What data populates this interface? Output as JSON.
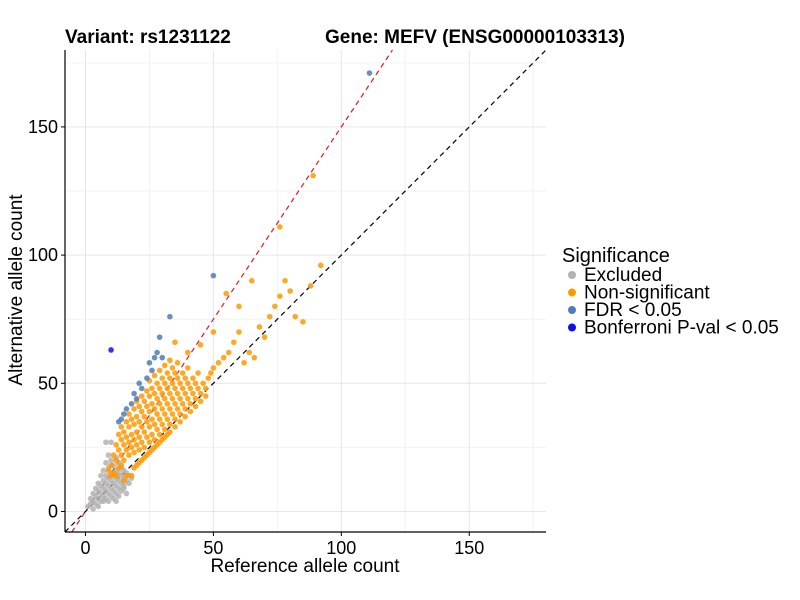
{
  "chart_data": {
    "type": "scatter",
    "title_left": "Variant: rs1231122",
    "title_right": "Gene: MEFV (ENSG00000103313)",
    "xlabel": "Reference allele count",
    "ylabel": "Alternative allele count",
    "xlim": [
      -8,
      180
    ],
    "ylim": [
      -8,
      180
    ],
    "xticks": [
      0,
      50,
      100,
      150
    ],
    "yticks": [
      0,
      50,
      100,
      150
    ],
    "grid": true,
    "reference_lines": [
      {
        "name": "identity",
        "slope": 1,
        "intercept": 0,
        "color": "#000000",
        "style": "dashed"
      },
      {
        "name": "fitted",
        "slope": 1.5,
        "intercept": 0,
        "color": "#e8141b",
        "style": "dashed"
      }
    ],
    "legend": {
      "title": "Significance",
      "position": "right",
      "entries": [
        {
          "label": "Excluded",
          "color": "#b3b3b3"
        },
        {
          "label": "Non-significant",
          "color": "#ff9900"
        },
        {
          "label": "FDR < 0.05",
          "color": "#4f7db5"
        },
        {
          "label": "Bonferroni P-val < 0.05",
          "color": "#1010ee"
        }
      ]
    },
    "series": [
      {
        "name": "Excluded",
        "color": "#b3b3b3",
        "points": [
          [
            1,
            2
          ],
          [
            2,
            3
          ],
          [
            2,
            5
          ],
          [
            3,
            4
          ],
          [
            3,
            7
          ],
          [
            4,
            3
          ],
          [
            4,
            6
          ],
          [
            4,
            9
          ],
          [
            5,
            5
          ],
          [
            5,
            8
          ],
          [
            5,
            11
          ],
          [
            6,
            4
          ],
          [
            6,
            7
          ],
          [
            6,
            10
          ],
          [
            6,
            14
          ],
          [
            7,
            6
          ],
          [
            7,
            9
          ],
          [
            7,
            12
          ],
          [
            7,
            16
          ],
          [
            8,
            5
          ],
          [
            8,
            8
          ],
          [
            8,
            11
          ],
          [
            8,
            14
          ],
          [
            8,
            19
          ],
          [
            9,
            7
          ],
          [
            9,
            10
          ],
          [
            9,
            13
          ],
          [
            9,
            17
          ],
          [
            9,
            22
          ],
          [
            10,
            6
          ],
          [
            10,
            9
          ],
          [
            10,
            12
          ],
          [
            10,
            15
          ],
          [
            10,
            20
          ],
          [
            10,
            27
          ],
          [
            11,
            8
          ],
          [
            11,
            11
          ],
          [
            11,
            14
          ],
          [
            11,
            18
          ],
          [
            12,
            7
          ],
          [
            12,
            10
          ],
          [
            12,
            13
          ],
          [
            12,
            16
          ],
          [
            12,
            21
          ],
          [
            13,
            9
          ],
          [
            13,
            12
          ],
          [
            13,
            15
          ],
          [
            13,
            19
          ],
          [
            14,
            8
          ],
          [
            14,
            11
          ],
          [
            14,
            14
          ],
          [
            14,
            17
          ],
          [
            15,
            10
          ],
          [
            15,
            13
          ],
          [
            15,
            16
          ],
          [
            16,
            12
          ],
          [
            16,
            15
          ],
          [
            17,
            11
          ],
          [
            17,
            14
          ],
          [
            18,
            13
          ],
          [
            7,
            4
          ],
          [
            5,
            2
          ],
          [
            3,
            1
          ],
          [
            9,
            4
          ],
          [
            11,
            5
          ],
          [
            12,
            4
          ],
          [
            8,
            27
          ],
          [
            13,
            6
          ],
          [
            15,
            9
          ],
          [
            16,
            7
          ]
        ]
      },
      {
        "name": "Non-significant",
        "color": "#ff9900",
        "points": [
          [
            10,
            18
          ],
          [
            11,
            22
          ],
          [
            12,
            20
          ],
          [
            12,
            26
          ],
          [
            13,
            24
          ],
          [
            13,
            30
          ],
          [
            14,
            22
          ],
          [
            14,
            28
          ],
          [
            14,
            33
          ],
          [
            15,
            20
          ],
          [
            15,
            26
          ],
          [
            15,
            31
          ],
          [
            16,
            24
          ],
          [
            16,
            29
          ],
          [
            16,
            35
          ],
          [
            17,
            22
          ],
          [
            17,
            27
          ],
          [
            17,
            33
          ],
          [
            17,
            38
          ],
          [
            18,
            25
          ],
          [
            18,
            30
          ],
          [
            18,
            36
          ],
          [
            19,
            23
          ],
          [
            19,
            28
          ],
          [
            19,
            34
          ],
          [
            19,
            40
          ],
          [
            20,
            26
          ],
          [
            20,
            31
          ],
          [
            20,
            37
          ],
          [
            20,
            43
          ],
          [
            21,
            24
          ],
          [
            21,
            29
          ],
          [
            21,
            35
          ],
          [
            21,
            41
          ],
          [
            22,
            27
          ],
          [
            22,
            33
          ],
          [
            22,
            39
          ],
          [
            22,
            45
          ],
          [
            23,
            25
          ],
          [
            23,
            31
          ],
          [
            23,
            37
          ],
          [
            23,
            43
          ],
          [
            24,
            29
          ],
          [
            24,
            35
          ],
          [
            24,
            41
          ],
          [
            24,
            47
          ],
          [
            25,
            27
          ],
          [
            25,
            33
          ],
          [
            25,
            39
          ],
          [
            25,
            45
          ],
          [
            25,
            51
          ],
          [
            26,
            30
          ],
          [
            26,
            36
          ],
          [
            26,
            42
          ],
          [
            26,
            48
          ],
          [
            27,
            28
          ],
          [
            27,
            34
          ],
          [
            27,
            40
          ],
          [
            27,
            46
          ],
          [
            27,
            53
          ],
          [
            28,
            32
          ],
          [
            28,
            38
          ],
          [
            28,
            44
          ],
          [
            28,
            50
          ],
          [
            29,
            30
          ],
          [
            29,
            36
          ],
          [
            29,
            42
          ],
          [
            29,
            48
          ],
          [
            29,
            55
          ],
          [
            30,
            34
          ],
          [
            30,
            40
          ],
          [
            30,
            46
          ],
          [
            30,
            52
          ],
          [
            31,
            32
          ],
          [
            31,
            38
          ],
          [
            31,
            44
          ],
          [
            31,
            50
          ],
          [
            31,
            57
          ],
          [
            32,
            36
          ],
          [
            32,
            42
          ],
          [
            32,
            48
          ],
          [
            32,
            54
          ],
          [
            33,
            34
          ],
          [
            33,
            40
          ],
          [
            33,
            46
          ],
          [
            33,
            52
          ],
          [
            33,
            59
          ],
          [
            34,
            38
          ],
          [
            34,
            44
          ],
          [
            34,
            50
          ],
          [
            34,
            56
          ],
          [
            35,
            36
          ],
          [
            35,
            42
          ],
          [
            35,
            48
          ],
          [
            35,
            54
          ],
          [
            36,
            40
          ],
          [
            36,
            46
          ],
          [
            36,
            52
          ],
          [
            36,
            58
          ],
          [
            37,
            38
          ],
          [
            37,
            44
          ],
          [
            37,
            50
          ],
          [
            38,
            42
          ],
          [
            38,
            48
          ],
          [
            38,
            54
          ],
          [
            39,
            40
          ],
          [
            39,
            46
          ],
          [
            39,
            52
          ],
          [
            40,
            44
          ],
          [
            40,
            50
          ],
          [
            40,
            56
          ],
          [
            41,
            42
          ],
          [
            41,
            48
          ],
          [
            42,
            46
          ],
          [
            42,
            52
          ],
          [
            43,
            44
          ],
          [
            43,
            50
          ],
          [
            44,
            48
          ],
          [
            44,
            54
          ],
          [
            45,
            46
          ],
          [
            46,
            50
          ],
          [
            47,
            48
          ],
          [
            48,
            52
          ],
          [
            49,
            54
          ],
          [
            50,
            56
          ],
          [
            52,
            58
          ],
          [
            54,
            60
          ],
          [
            56,
            62
          ],
          [
            58,
            66
          ],
          [
            60,
            70
          ],
          [
            62,
            58
          ],
          [
            64,
            62
          ],
          [
            66,
            60
          ],
          [
            68,
            72
          ],
          [
            70,
            68
          ],
          [
            72,
            76
          ],
          [
            74,
            80
          ],
          [
            76,
            84
          ],
          [
            78,
            90
          ],
          [
            80,
            86
          ],
          [
            82,
            76
          ],
          [
            85,
            74
          ],
          [
            88,
            88
          ],
          [
            92,
            96
          ],
          [
            89,
            131
          ],
          [
            76,
            111
          ],
          [
            55,
            85
          ],
          [
            60,
            80
          ],
          [
            65,
            90
          ],
          [
            50,
            70
          ],
          [
            45,
            65
          ],
          [
            40,
            62
          ],
          [
            35,
            66
          ],
          [
            18,
            14
          ],
          [
            20,
            18
          ],
          [
            22,
            20
          ],
          [
            24,
            22
          ],
          [
            26,
            24
          ],
          [
            28,
            26
          ],
          [
            30,
            28
          ],
          [
            32,
            30
          ],
          [
            15,
            12
          ],
          [
            16,
            14
          ],
          [
            19,
            17
          ],
          [
            21,
            19
          ],
          [
            23,
            21
          ],
          [
            25,
            23
          ],
          [
            27,
            25
          ],
          [
            29,
            27
          ],
          [
            31,
            29
          ],
          [
            33,
            31
          ],
          [
            35,
            33
          ],
          [
            37,
            35
          ],
          [
            39,
            37
          ],
          [
            41,
            39
          ],
          [
            43,
            41
          ],
          [
            45,
            43
          ],
          [
            47,
            45
          ],
          [
            13,
            17
          ],
          [
            11,
            15
          ],
          [
            12,
            14
          ],
          [
            14,
            18
          ],
          [
            9,
            16
          ],
          [
            10,
            14
          ]
        ]
      },
      {
        "name": "FDR < 0.05",
        "color": "#4f7db5",
        "points": [
          [
            111,
            171
          ],
          [
            50,
            92
          ],
          [
            33,
            76
          ],
          [
            29,
            68
          ],
          [
            28,
            62
          ],
          [
            27,
            60
          ],
          [
            25,
            58
          ],
          [
            24,
            52
          ],
          [
            21,
            50
          ],
          [
            20,
            44
          ],
          [
            18,
            42
          ],
          [
            16,
            40
          ],
          [
            15,
            38
          ],
          [
            14,
            36
          ],
          [
            13,
            35
          ],
          [
            30,
            60
          ],
          [
            26,
            55
          ],
          [
            22,
            48
          ],
          [
            19,
            46
          ]
        ]
      },
      {
        "name": "Bonferroni P-val < 0.05",
        "color": "#1010ee",
        "points": [
          [
            10,
            63
          ]
        ]
      }
    ]
  }
}
